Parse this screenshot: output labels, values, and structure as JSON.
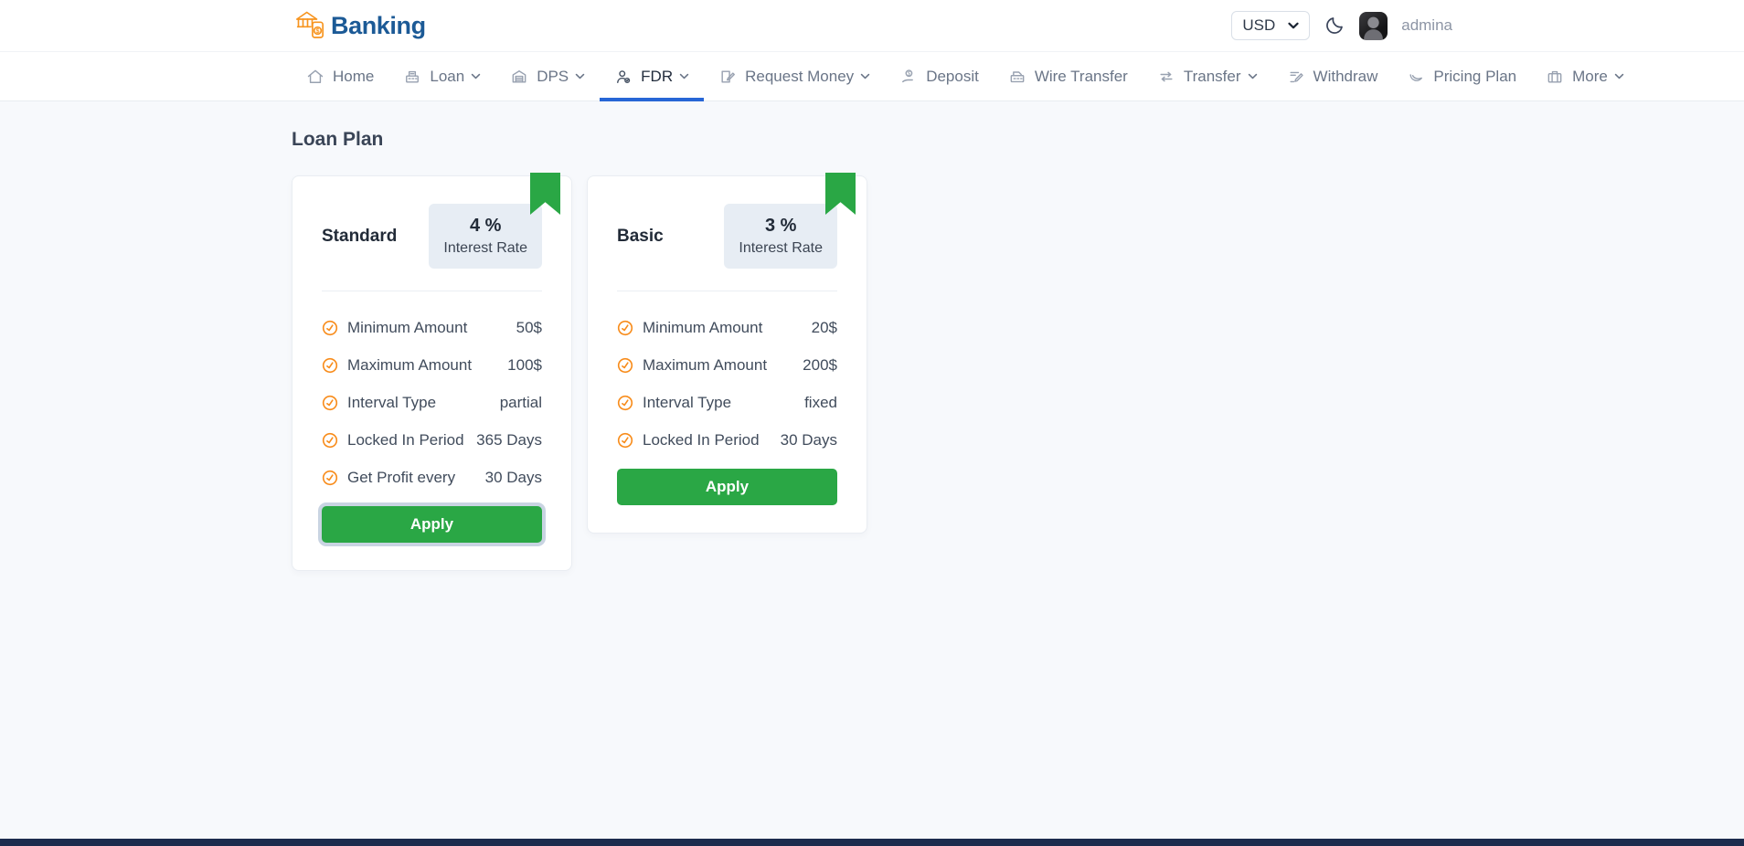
{
  "brand": {
    "name": "Banking",
    "logo_icon": "bank-logo-icon",
    "text_color": "#1c5a96",
    "icon_color": "#f7941e"
  },
  "header": {
    "currency_selector": {
      "value": "USD",
      "chevron_icon": "chevron-down-icon"
    },
    "theme_toggle_icon": "moon-icon",
    "user": {
      "name": "admina",
      "avatar": "user-avatar"
    }
  },
  "nav": {
    "active_underline_color": "#2766d6",
    "items": [
      {
        "label": "Home",
        "icon": "home-icon",
        "dropdown": false,
        "active": false
      },
      {
        "label": "Loan",
        "icon": "cash-register-icon",
        "dropdown": true,
        "active": false
      },
      {
        "label": "DPS",
        "icon": "archive-icon",
        "dropdown": true,
        "active": false
      },
      {
        "label": "FDR",
        "icon": "user-shield-icon",
        "dropdown": true,
        "active": true
      },
      {
        "label": "Request Money",
        "icon": "file-pen-icon",
        "dropdown": true,
        "active": false
      },
      {
        "label": "Deposit",
        "icon": "hand-dollar-icon",
        "dropdown": false,
        "active": false
      },
      {
        "label": "Wire Transfer",
        "icon": "wire-transfer-icon",
        "dropdown": false,
        "active": false
      },
      {
        "label": "Transfer",
        "icon": "arrows-swap-icon",
        "dropdown": true,
        "active": false
      },
      {
        "label": "Withdraw",
        "icon": "withdraw-pen-icon",
        "dropdown": false,
        "active": false
      },
      {
        "label": "Pricing Plan",
        "icon": "swoosh-icon",
        "dropdown": false,
        "active": false
      },
      {
        "label": "More",
        "icon": "briefcase-icon",
        "dropdown": true,
        "active": false
      }
    ]
  },
  "page": {
    "title": "Loan Plan"
  },
  "plans": [
    {
      "name": "Standard",
      "rate": "4 %",
      "rate_label": "Interest Rate",
      "ribbon_icon": "bookmark-ribbon",
      "ribbon_color": "#2aa745",
      "feature_icon": "check-circle-icon",
      "feature_icon_color": "#f88c1b",
      "features": [
        {
          "label": "Minimum Amount",
          "value": "50$"
        },
        {
          "label": "Maximum Amount",
          "value": "100$"
        },
        {
          "label": "Interval Type",
          "value": "partial"
        },
        {
          "label": "Locked In Period",
          "value": "365 Days"
        },
        {
          "label": "Get Profit every",
          "value": "30 Days"
        }
      ],
      "apply_label": "Apply",
      "apply_focused": true
    },
    {
      "name": "Basic",
      "rate": "3 %",
      "rate_label": "Interest Rate",
      "ribbon_icon": "bookmark-ribbon",
      "ribbon_color": "#2aa745",
      "feature_icon": "check-circle-icon",
      "feature_icon_color": "#f88c1b",
      "features": [
        {
          "label": "Minimum Amount",
          "value": "20$"
        },
        {
          "label": "Maximum Amount",
          "value": "200$"
        },
        {
          "label": "Interval Type",
          "value": "fixed"
        },
        {
          "label": "Locked In Period",
          "value": "30 Days"
        }
      ],
      "apply_label": "Apply",
      "apply_focused": false
    }
  ]
}
